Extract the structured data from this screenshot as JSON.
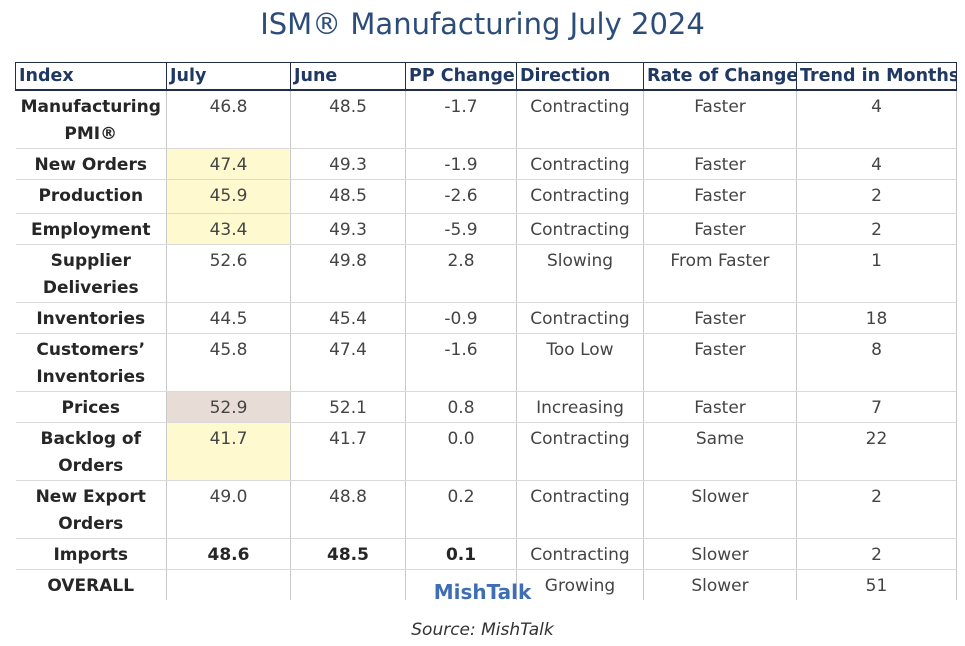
{
  "title": "ISM® Manufacturing July 2024",
  "headers": [
    "Index",
    "July",
    "June",
    "PP Change",
    "Direction",
    "Rate of Change",
    "Trend in Months"
  ],
  "rows": [
    {
      "index": "Manufacturing PMI®",
      "july": "46.8",
      "june": "48.5",
      "pp_change": "-1.7",
      "direction": "Contracting",
      "rate": "Faster",
      "trend": "4"
    },
    {
      "index": "New Orders",
      "july": "47.4",
      "june": "49.3",
      "pp_change": "-1.9",
      "direction": "Contracting",
      "rate": "Faster",
      "trend": "4"
    },
    {
      "index": "Production",
      "july": "45.9",
      "june": "48.5",
      "pp_change": "-2.6",
      "direction": "Contracting",
      "rate": "Faster",
      "trend": "2"
    },
    {
      "index": "Employment",
      "july": "43.4",
      "june": "49.3",
      "pp_change": "-5.9",
      "direction": "Contracting",
      "rate": "Faster",
      "trend": "2"
    },
    {
      "index": "Supplier Deliveries",
      "july": "52.6",
      "june": "49.8",
      "pp_change": "2.8",
      "direction": "Slowing",
      "rate": "From Faster",
      "trend": "1"
    },
    {
      "index": "Inventories",
      "july": "44.5",
      "june": "45.4",
      "pp_change": "-0.9",
      "direction": "Contracting",
      "rate": "Faster",
      "trend": "18"
    },
    {
      "index": "Customers’ Inventories",
      "july": "45.8",
      "june": "47.4",
      "pp_change": "-1.6",
      "direction": "Too Low",
      "rate": "Faster",
      "trend": "8"
    },
    {
      "index": "Prices",
      "july": "52.9",
      "june": "52.1",
      "pp_change": "0.8",
      "direction": "Increasing",
      "rate": "Faster",
      "trend": "7"
    },
    {
      "index": "Backlog of Orders",
      "july": "41.7",
      "june": "41.7",
      "pp_change": "0.0",
      "direction": "Contracting",
      "rate": "Same",
      "trend": "22"
    },
    {
      "index": "New Export Orders",
      "july": "49.0",
      "june": "48.8",
      "pp_change": "0.2",
      "direction": "Contracting",
      "rate": "Slower",
      "trend": "2"
    },
    {
      "index": "Imports",
      "july": "48.6",
      "june": "48.5",
      "pp_change": "0.1",
      "direction": "Contracting",
      "rate": "Slower",
      "trend": "2"
    },
    {
      "index": "OVERALL",
      "july": "",
      "june": "",
      "pp_change": "",
      "direction": "Growing",
      "rate": "Slower",
      "trend": "51"
    }
  ],
  "brand": "MishTalk",
  "source": "Source: MishTalk",
  "colors": {
    "title": "#2c4d7a",
    "header_text": "#1f3864",
    "highlight_yellow": "#fff9cf",
    "highlight_tan": "#e7ddd6",
    "brand": "#3e6fb3"
  }
}
